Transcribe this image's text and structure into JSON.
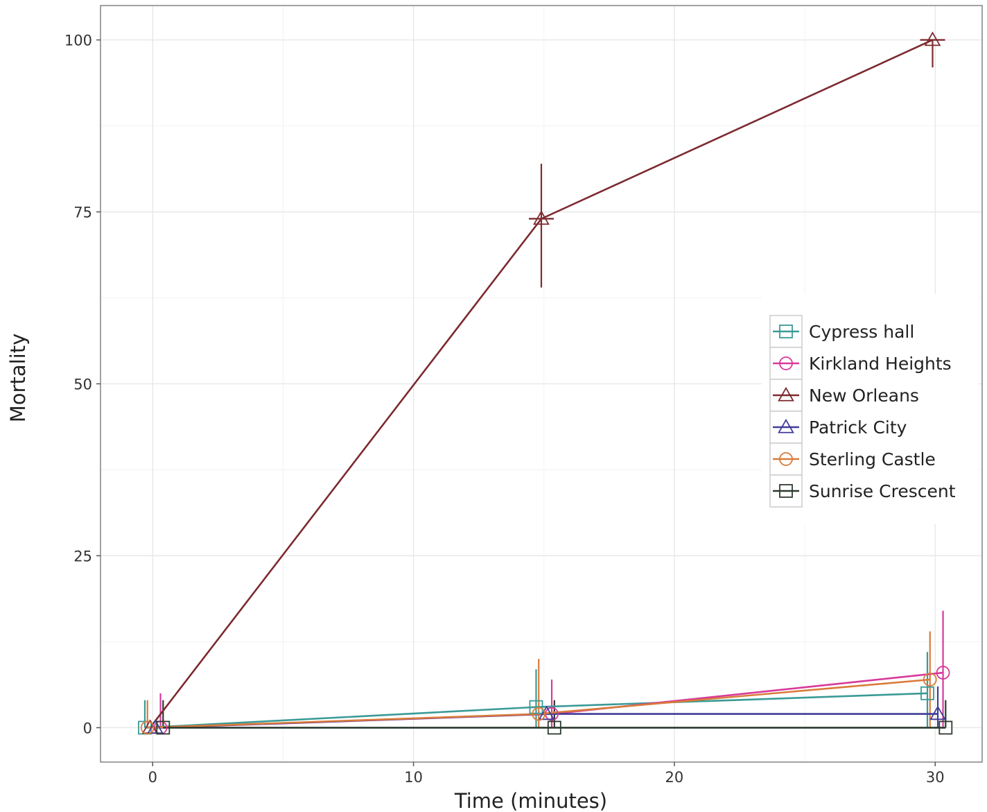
{
  "chart_data": {
    "type": "line",
    "title": "",
    "xlabel": "Time (minutes)",
    "ylabel": "Mortality",
    "xlim": [
      -2,
      31.8
    ],
    "ylim": [
      -5,
      105
    ],
    "xticks": [
      0,
      10,
      20,
      30
    ],
    "yticks": [
      0,
      25,
      50,
      75,
      100
    ],
    "grid": true,
    "legend_position": "right",
    "series": [
      {
        "name": "Cypress hall",
        "color": "#3a9a96",
        "marker": "square",
        "x": [
          0,
          15,
          30
        ],
        "y": [
          0,
          3,
          5
        ],
        "err_low": [
          0,
          0,
          0
        ],
        "err_high": [
          4,
          8.5,
          11
        ]
      },
      {
        "name": "Kirkland Heights",
        "color": "#d8399a",
        "marker": "circle",
        "x": [
          0,
          15,
          30
        ],
        "y": [
          0,
          2,
          8
        ],
        "err_low": [
          0,
          0,
          0
        ],
        "err_high": [
          5,
          7,
          17
        ]
      },
      {
        "name": "New Orleans",
        "color": "#7c2a30",
        "marker": "triangle",
        "x": [
          0,
          15,
          30
        ],
        "y": [
          0,
          74,
          100
        ],
        "err_low": [
          0,
          64,
          96
        ],
        "err_high": [
          0,
          82,
          100
        ]
      },
      {
        "name": "Patrick City",
        "color": "#403d97",
        "marker": "triangle",
        "x": [
          0,
          15,
          30
        ],
        "y": [
          0,
          2,
          2
        ],
        "err_low": [
          0,
          0,
          0
        ],
        "err_high": [
          0,
          0,
          6
        ]
      },
      {
        "name": "Sterling Castle",
        "color": "#d97b3a",
        "marker": "circle",
        "x": [
          0,
          15,
          30
        ],
        "y": [
          0,
          2,
          7
        ],
        "err_low": [
          0,
          0,
          0
        ],
        "err_high": [
          4,
          10,
          14
        ]
      },
      {
        "name": "Sunrise Crescent",
        "color": "#2c3a2e",
        "marker": "square",
        "x": [
          0,
          15,
          30
        ],
        "y": [
          0,
          0,
          0
        ],
        "err_low": [
          0,
          0,
          0
        ],
        "err_high": [
          4,
          4,
          4
        ]
      }
    ]
  }
}
